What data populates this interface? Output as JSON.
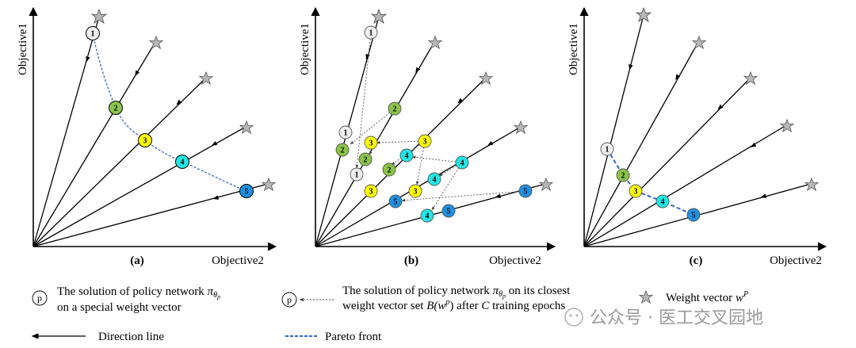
{
  "panels": [
    {
      "label": "(a)",
      "xlabel": "Objective2",
      "ylabel": "Objective1"
    },
    {
      "label": "(b)",
      "xlabel": "Objective2",
      "ylabel": "Objective1"
    },
    {
      "label": "(c)",
      "xlabel": "Objective2",
      "ylabel": "Objective1"
    }
  ],
  "weight_ids": [
    "1",
    "2",
    "3",
    "4",
    "5"
  ],
  "colors": {
    "p1": "#eeeeee",
    "p2": "#8bc34a",
    "p3": "#ffff00",
    "p4": "#22e5e5",
    "p5": "#1e90e0",
    "pareto": "#3366cc",
    "star": "#8a8a8a"
  },
  "legend": {
    "solution_symbol": "p",
    "solution_text_line1": "The solution of policy network",
    "solution_math": "π",
    "solution_math_sub": "θ",
    "solution_math_subsub": "p",
    "solution_text_line1b": "",
    "solution_text_line2": "on a special weight vector",
    "closest_symbol": "p",
    "closest_text_line1a": "The solution of policy network",
    "closest_math": "π",
    "closest_math_sub": "θ",
    "closest_math_subsub": "p",
    "closest_text_line1b": "on its closest",
    "closest_text_line2a": "weight vector set",
    "closest_math2": "B(w",
    "closest_math2_sup": "p",
    "closest_math2_close": ")",
    "closest_text_line2b": "after",
    "closest_math3": "C",
    "closest_text_line2c": "training epochs",
    "weight_text": "Weight vector",
    "weight_math": "w",
    "weight_math_sup": "P",
    "direction_text": "Direction line",
    "pareto_text": "Pareto front"
  },
  "watermark": "公众号 · 医工交叉园地"
}
